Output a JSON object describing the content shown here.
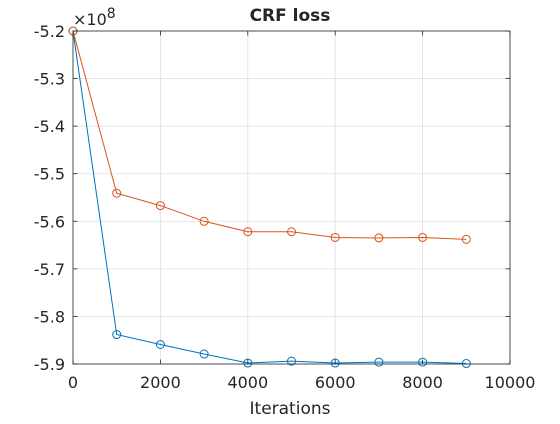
{
  "chart_data": {
    "type": "line",
    "title": "CRF loss",
    "xlabel": "Iterations",
    "ylabel": "",
    "exponent_label": "×10^8",
    "exponent_base": "×10",
    "exponent_power": "8",
    "x": [
      0,
      1000,
      2000,
      3000,
      4000,
      5000,
      6000,
      7000,
      8000,
      9000
    ],
    "xlim": [
      0,
      10000
    ],
    "ylim": [
      -5.9,
      -5.2
    ],
    "xticks": [
      0,
      2000,
      4000,
      6000,
      8000,
      10000
    ],
    "xtick_labels": [
      "0",
      "2000",
      "4000",
      "6000",
      "8000",
      "10000"
    ],
    "yticks": [
      -5.2,
      -5.3,
      -5.4,
      -5.5,
      -5.6,
      -5.7,
      -5.8,
      -5.9
    ],
    "ytick_labels": [
      "-5.2",
      "-5.3",
      "-5.4",
      "-5.5",
      "-5.6",
      "-5.7",
      "-5.8",
      "-5.9"
    ],
    "grid": true,
    "legend": "none",
    "marker": "circle",
    "series": [
      {
        "color": "#0072bd",
        "values": [
          -5.2,
          -5.838,
          -5.859,
          -5.879,
          -5.898,
          -5.894,
          -5.898,
          -5.896,
          -5.896,
          -5.899
        ]
      },
      {
        "color": "#d95319",
        "values": [
          -5.2,
          -5.541,
          -5.567,
          -5.6,
          -5.622,
          -5.622,
          -5.634,
          -5.635,
          -5.634,
          -5.638
        ]
      }
    ]
  }
}
